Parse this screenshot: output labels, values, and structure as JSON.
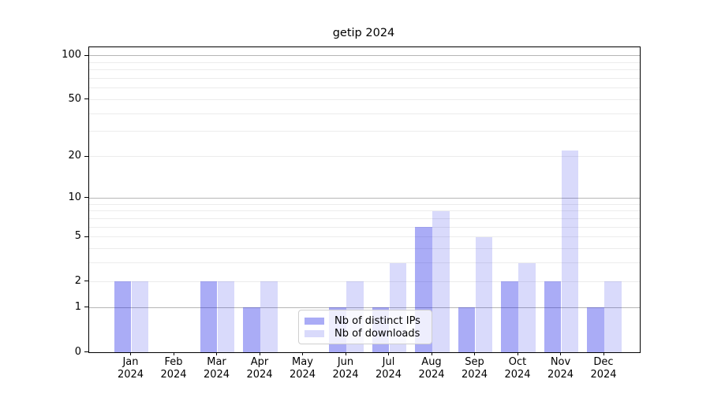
{
  "title": "getip 2024",
  "legend": {
    "items": [
      {
        "label": "Nb of distinct IPs",
        "color_on_white": "#a8a9f5",
        "fill": "rgba(20,25,230,0.36)"
      },
      {
        "label": "Nb of downloads",
        "color_on_white": "#dadbfb",
        "fill": "rgba(20,25,230,0.16)"
      }
    ]
  },
  "chart_data": {
    "type": "bar",
    "title": "getip 2024",
    "categories": [
      "Jan 2024",
      "Feb 2024",
      "Mar 2024",
      "Apr 2024",
      "May 2024",
      "Jun 2024",
      "Jul 2024",
      "Aug 2024",
      "Sep 2024",
      "Oct 2024",
      "Nov 2024",
      "Dec 2024"
    ],
    "series": [
      {
        "name": "Nb of distinct IPs",
        "fill": "rgba(20,25,230,0.36)",
        "values": [
          2,
          0,
          2,
          1,
          0,
          1,
          1,
          6,
          1,
          2,
          2,
          1
        ]
      },
      {
        "name": "Nb of downloads",
        "fill": "rgba(20,25,230,0.16)",
        "values": [
          2,
          0,
          2,
          2,
          0,
          2,
          3,
          8,
          5,
          3,
          22,
          2
        ]
      }
    ],
    "xlabel": "",
    "ylabel": "",
    "yscale": "log1p",
    "ylim": [
      0,
      114
    ],
    "yticks": [
      100,
      50,
      20,
      10,
      5,
      2,
      1,
      0
    ],
    "grid": {
      "major": [
        1,
        10,
        100
      ],
      "minor": [
        2,
        3,
        4,
        5,
        6,
        7,
        8,
        9,
        20,
        30,
        40,
        50,
        60,
        70,
        80,
        90
      ]
    },
    "legend_position": "lower center",
    "grid_colors": {
      "major": "#b6b6b6",
      "minor": "#ececec"
    }
  }
}
